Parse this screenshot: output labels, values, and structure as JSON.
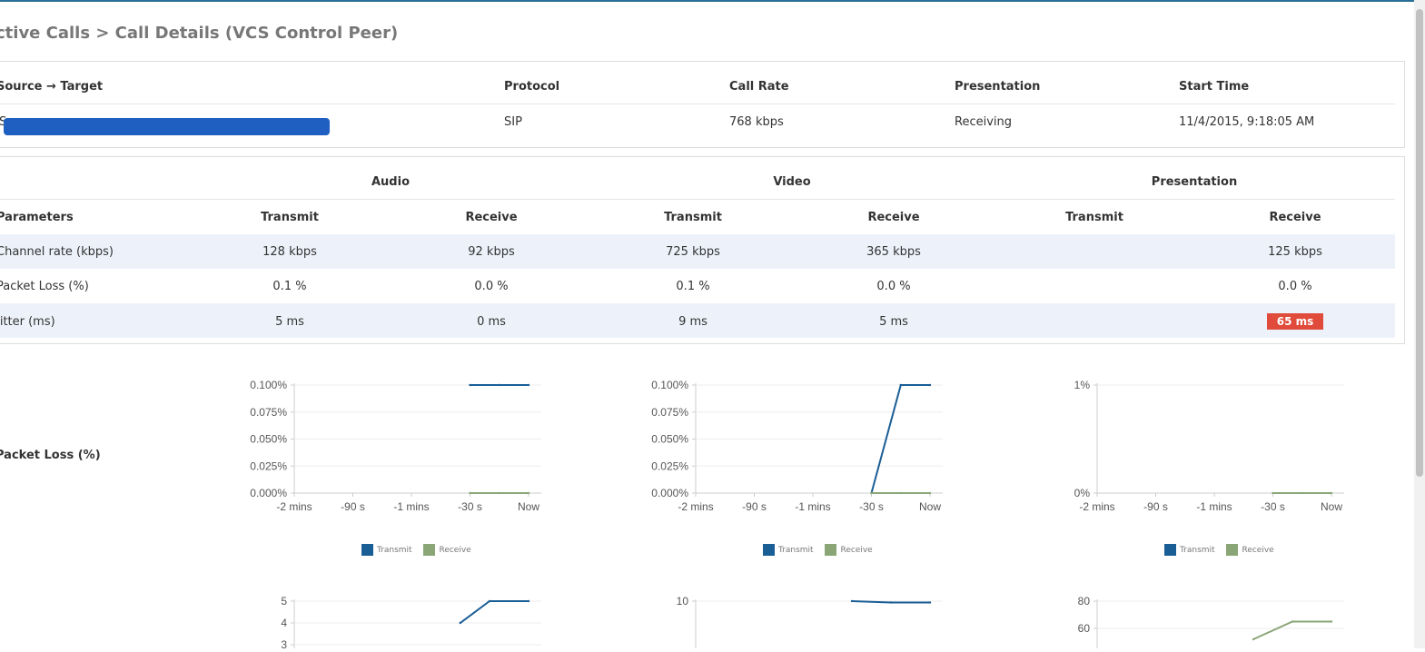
{
  "page": {
    "title": "ctive Calls > Call Details (VCS Control Peer)"
  },
  "summary": {
    "headers": [
      "Source → Target",
      "Protocol",
      "Call Rate",
      "Presentation",
      "Start Time"
    ],
    "row": {
      "source_target": "S",
      "protocol": "SIP",
      "call_rate": "768 kbps",
      "presentation": "Receiving",
      "start_time": "11/4/2015, 9:18:05 AM"
    }
  },
  "stats": {
    "groups": [
      "Audio",
      "Video",
      "Presentation"
    ],
    "subheaders": [
      "Parameters",
      "Transmit",
      "Receive",
      "Transmit",
      "Receive",
      "Transmit",
      "Receive"
    ],
    "rows": [
      {
        "label": "Channel rate (kbps)",
        "values": [
          "128 kbps",
          "92 kbps",
          "725 kbps",
          "365 kbps",
          "",
          "125 kbps"
        ]
      },
      {
        "label": "Packet Loss (%)",
        "values": [
          "0.1 %",
          "0.0 %",
          "0.1 %",
          "0.0 %",
          "",
          "0.0 %"
        ]
      },
      {
        "label": "Jitter (ms)",
        "values": [
          "5 ms",
          "0 ms",
          "9 ms",
          "5 ms",
          "",
          "65 ms"
        ]
      }
    ],
    "alert_color": "#e14b3b"
  },
  "charts_section": {
    "packet_loss_label": "Packet Loss (%)"
  },
  "colors": {
    "transmit": "#1a5e96",
    "receive": "#8aa677"
  },
  "legend": {
    "transmit": "Transmit",
    "receive": "Receive"
  },
  "chart_data": [
    {
      "type": "line",
      "x": [
        "-2 mins",
        "-90 s",
        "-1 mins",
        "-30 s",
        "Now"
      ],
      "yticks": [
        "0.000%",
        "0.025%",
        "0.050%",
        "0.075%",
        "0.100%"
      ],
      "ylim": [
        0,
        0.1
      ],
      "series": [
        {
          "name": "Transmit",
          "points": [
            [
              -30,
              0.1
            ],
            [
              -15,
              0.1
            ],
            [
              0,
              0.1
            ]
          ]
        },
        {
          "name": "Receive",
          "points": [
            [
              -30,
              0
            ],
            [
              -15,
              0
            ],
            [
              0,
              0
            ]
          ]
        }
      ]
    },
    {
      "type": "line",
      "x": [
        "-2 mins",
        "-90 s",
        "-1 mins",
        "-30 s",
        "Now"
      ],
      "yticks": [
        "0.000%",
        "0.025%",
        "0.050%",
        "0.075%",
        "0.100%"
      ],
      "ylim": [
        0,
        0.1
      ],
      "series": [
        {
          "name": "Transmit",
          "points": [
            [
              -30,
              0
            ],
            [
              -15,
              0.1
            ],
            [
              0,
              0.1
            ]
          ]
        },
        {
          "name": "Receive",
          "points": [
            [
              -30,
              0
            ],
            [
              -15,
              0
            ],
            [
              0,
              0
            ]
          ]
        }
      ]
    },
    {
      "type": "line",
      "x": [
        "-2 mins",
        "-90 s",
        "-1 mins",
        "-30 s",
        "Now"
      ],
      "yticks": [
        "0%",
        "1%"
      ],
      "ylim": [
        0,
        1
      ],
      "series": [
        {
          "name": "Transmit",
          "points": []
        },
        {
          "name": "Receive",
          "points": [
            [
              -30,
              0
            ],
            [
              -15,
              0
            ],
            [
              0,
              0
            ]
          ]
        }
      ]
    },
    {
      "type": "line",
      "yticks": [
        "3",
        "4",
        "5"
      ],
      "ylim": [
        3,
        5
      ],
      "series": [
        {
          "name": "Transmit",
          "points": [
            [
              -35,
              4
            ],
            [
              -20,
              5
            ],
            [
              0,
              5
            ]
          ]
        }
      ]
    },
    {
      "type": "line",
      "yticks": [
        "10"
      ],
      "ylim": [
        0,
        10
      ],
      "series": [
        {
          "name": "Transmit",
          "points": [
            [
              -40,
              10
            ],
            [
              -20,
              9
            ],
            [
              0,
              9
            ]
          ]
        }
      ]
    },
    {
      "type": "line",
      "yticks": [
        "60",
        "80"
      ],
      "ylim": [
        40,
        80
      ],
      "series": [
        {
          "name": "Receive",
          "points": [
            [
              -40,
              52
            ],
            [
              -20,
              65
            ],
            [
              0,
              65
            ]
          ]
        }
      ]
    }
  ]
}
